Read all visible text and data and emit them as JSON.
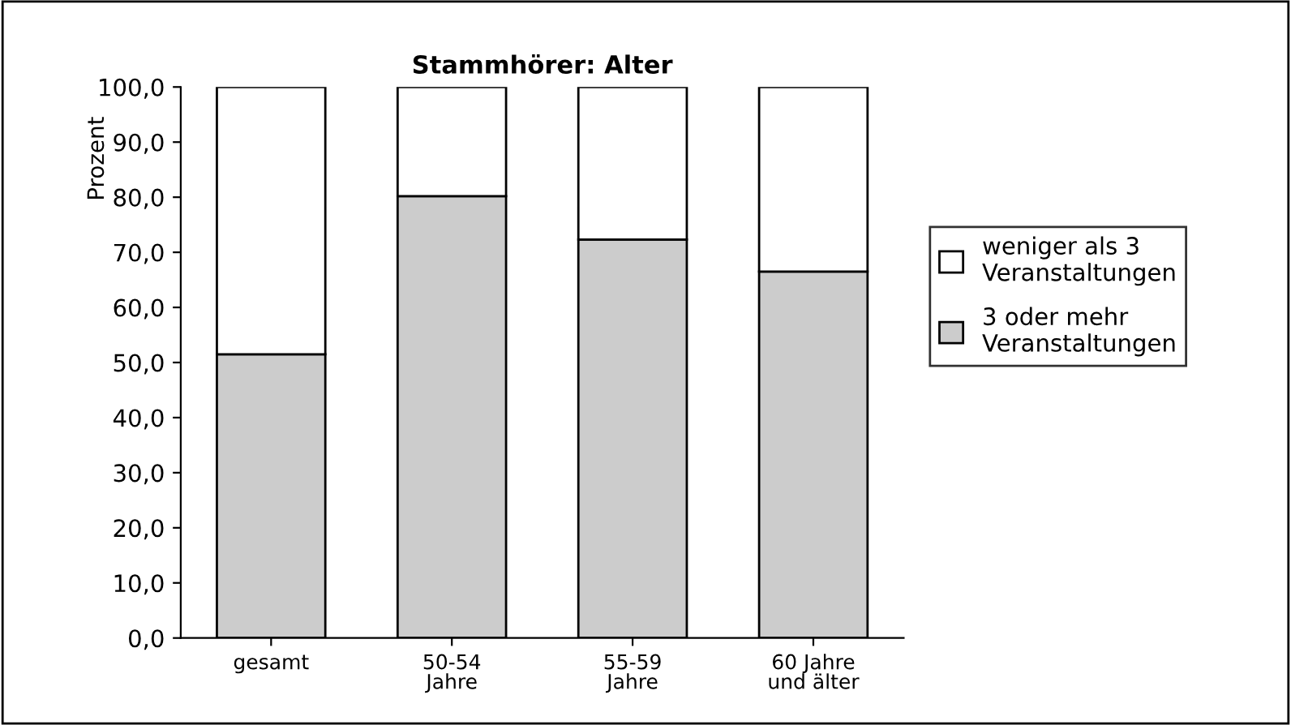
{
  "chart_data": {
    "type": "bar",
    "stacked": true,
    "title": "Stammhörer: Alter",
    "ylabel": "Prozent",
    "categories": [
      "gesamt",
      "50-54\nJahre",
      "55-59\nJahre",
      "60 Jahre\nund älter"
    ],
    "series": [
      {
        "name": "3 oder mehr\nVeranstaltungen",
        "color": "#cccccc",
        "values": [
          51.5,
          80.2,
          72.3,
          66.5
        ]
      },
      {
        "name": "weniger als 3\nVeranstaltungen",
        "color": "#ffffff",
        "values": [
          48.5,
          19.8,
          27.7,
          33.5
        ]
      }
    ],
    "ylim": [
      0,
      100
    ],
    "yticks": [
      {
        "value": 0,
        "label": "0,0"
      },
      {
        "value": 10,
        "label": "10,0"
      },
      {
        "value": 20,
        "label": "20,0"
      },
      {
        "value": 30,
        "label": "30,0"
      },
      {
        "value": 40,
        "label": "40,0"
      },
      {
        "value": 50,
        "label": "50,0"
      },
      {
        "value": 60,
        "label": "60,0"
      },
      {
        "value": 70,
        "label": "70,0"
      },
      {
        "value": 80,
        "label": "80,0"
      },
      {
        "value": 90,
        "label": "90,0"
      },
      {
        "value": 100,
        "label": "100,0"
      }
    ],
    "legend": "right",
    "grid": false
  }
}
